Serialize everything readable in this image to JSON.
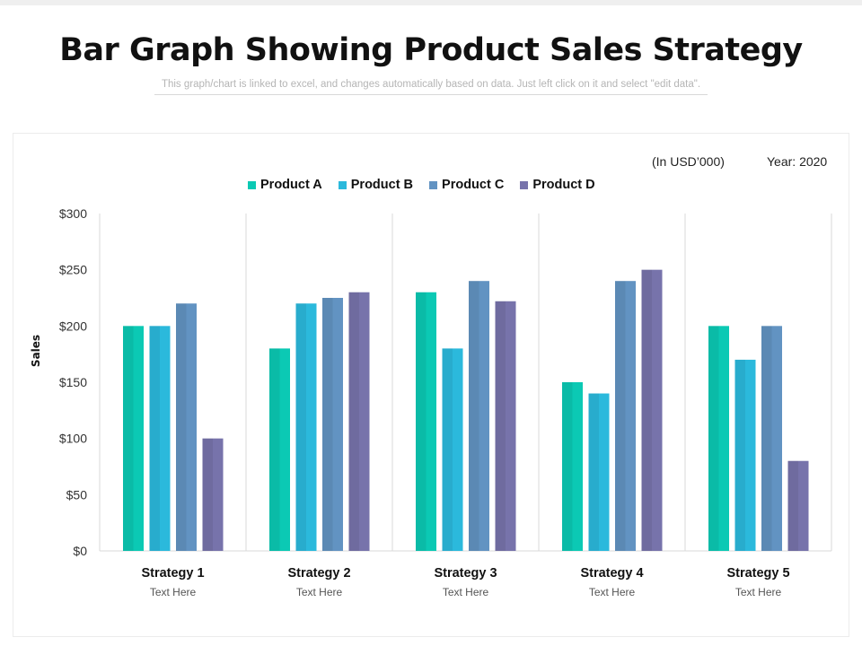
{
  "title": "Bar Graph Showing Product Sales Strategy",
  "subtitle": "This graph/chart is linked to excel, and changes automatically based on data. Just left click on it and select \"edit data\".",
  "units_label": "(In USD’000)",
  "year_label": "Year: 2020",
  "chart_data": {
    "type": "bar",
    "title": "Bar Graph Showing Product Sales Strategy",
    "xlabel": "",
    "ylabel": "Sales",
    "ylim": [
      0,
      300
    ],
    "y_ticks": [
      0,
      50,
      100,
      150,
      200,
      250,
      300
    ],
    "y_tick_labels": [
      "$0",
      "$50",
      "$100",
      "$150",
      "$200",
      "$250",
      "$300"
    ],
    "grid": "vertical separators between categories",
    "legend_position": "top-center",
    "categories": [
      "Strategy 1",
      "Strategy 2",
      "Strategy 3",
      "Strategy 4",
      "Strategy 5"
    ],
    "category_sublabels": [
      "Text Here",
      "Text Here",
      "Text Here",
      "Text Here",
      "Text Here"
    ],
    "series": [
      {
        "name": "Product A",
        "color": "#0bc9b4",
        "values": [
          200,
          180,
          230,
          150,
          200
        ]
      },
      {
        "name": "Product B",
        "color": "#2bb9dc",
        "values": [
          200,
          220,
          180,
          140,
          170
        ]
      },
      {
        "name": "Product C",
        "color": "#6293c2",
        "values": [
          220,
          225,
          240,
          240,
          200
        ]
      },
      {
        "name": "Product D",
        "color": "#7773ab",
        "values": [
          100,
          230,
          222,
          250,
          80
        ]
      }
    ]
  }
}
